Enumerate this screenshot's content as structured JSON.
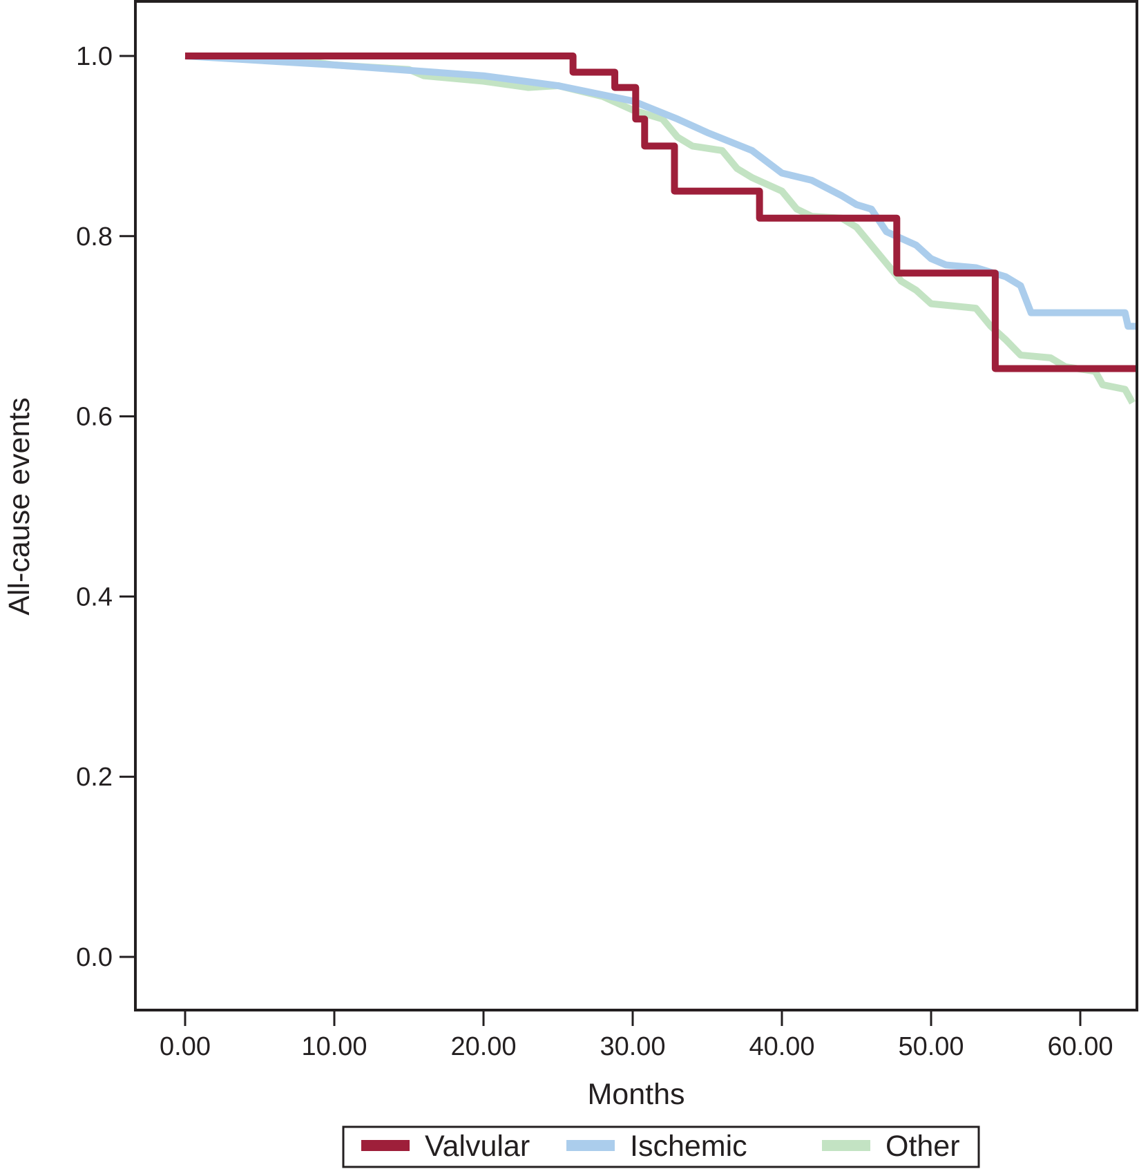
{
  "chart_data": {
    "type": "line",
    "title": "",
    "xlabel": "Months",
    "ylabel": "All-cause events",
    "xlim": [
      -3.4,
      63.8
    ],
    "ylim": [
      -0.059,
      1.062
    ],
    "x_ticks": [
      "0.00",
      "10.00",
      "20.00",
      "30.00",
      "40.00",
      "50.00",
      "60.00"
    ],
    "x_tick_values": [
      0,
      10,
      20,
      30,
      40,
      50,
      60
    ],
    "y_ticks": [
      "0.0",
      "0.2",
      "0.4",
      "0.6",
      "0.8",
      "1.0"
    ],
    "y_tick_values": [
      0,
      0.2,
      0.4,
      0.6,
      0.8,
      1.0
    ],
    "grid": false,
    "legend_placement": "bottom",
    "series": [
      {
        "name": "Valvular",
        "color": "#9e1f3a",
        "step": true,
        "x": [
          0,
          26.0,
          28.8,
          30.2,
          30.8,
          32.8,
          38.5,
          47.7,
          54.3,
          63.8
        ],
        "y": [
          1.0,
          0.982,
          0.965,
          0.93,
          0.9,
          0.85,
          0.82,
          0.759,
          0.653,
          0.653
        ]
      },
      {
        "name": "Ischemic",
        "color": "#abcdec",
        "step": false,
        "x": [
          0,
          10,
          20,
          25,
          30,
          33,
          35,
          38,
          40,
          42,
          44,
          45,
          46,
          47,
          49,
          50,
          51,
          53,
          55,
          56,
          56.7,
          63,
          63.2,
          63.8
        ],
        "y": [
          1.0,
          0.99,
          0.978,
          0.967,
          0.95,
          0.93,
          0.915,
          0.895,
          0.87,
          0.862,
          0.845,
          0.835,
          0.83,
          0.805,
          0.79,
          0.775,
          0.768,
          0.765,
          0.755,
          0.745,
          0.715,
          0.715,
          0.7,
          0.7
        ]
      },
      {
        "name": "Other",
        "color": "#c3e3c3",
        "step": false,
        "x": [
          0,
          8,
          10,
          15,
          16,
          20,
          23,
          25,
          28,
          30,
          32,
          33,
          34,
          36,
          37,
          38,
          40,
          41,
          42,
          44,
          45,
          46,
          47,
          48,
          49,
          50,
          53,
          54,
          55,
          56,
          58,
          59,
          61,
          61.5,
          63,
          63.5
        ],
        "y": [
          1.0,
          0.995,
          0.99,
          0.985,
          0.978,
          0.972,
          0.965,
          0.967,
          0.955,
          0.94,
          0.93,
          0.91,
          0.9,
          0.895,
          0.875,
          0.865,
          0.85,
          0.83,
          0.822,
          0.82,
          0.81,
          0.79,
          0.77,
          0.75,
          0.74,
          0.725,
          0.72,
          0.7,
          0.685,
          0.668,
          0.665,
          0.655,
          0.65,
          0.635,
          0.63,
          0.615
        ]
      }
    ]
  }
}
